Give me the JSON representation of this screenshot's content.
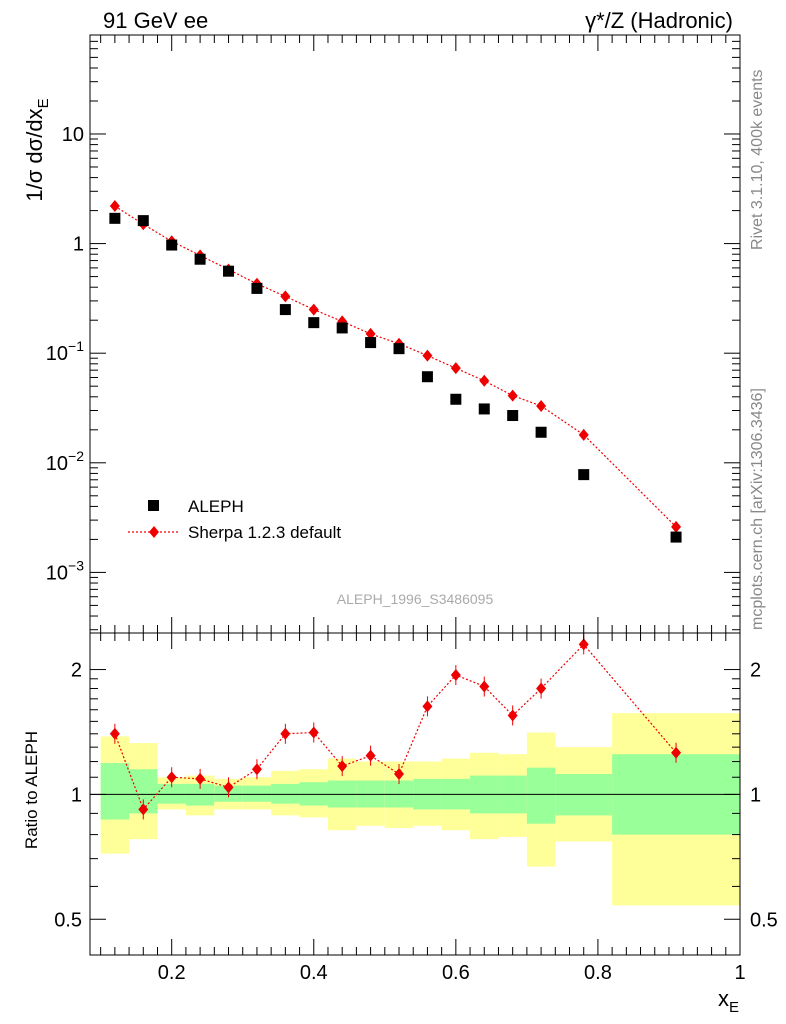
{
  "header": {
    "left": "91 GeV ee",
    "right": "γ*/Z (Hadronic)"
  },
  "side_labels": {
    "top": "Rivet 3.1.10,  400k events",
    "bottom": "mcplots.cern.ch [arXiv:1306.3436]"
  },
  "watermark": "ALEPH_1996_S3486095",
  "axes": {
    "ylabel_main": "1/σ dσ/dx",
    "ylabel_main_sub": "E",
    "ylabel_ratio": "Ratio to ALEPH",
    "xlabel": "x",
    "xlabel_sub": "E"
  },
  "legend": {
    "data_label": "ALEPH",
    "mc_label": "Sherpa 1.2.3 default"
  },
  "colors": {
    "data": "#000000",
    "mc": "#ee0000",
    "band_inner": "#99ff99",
    "band_outer": "#ffff99"
  },
  "chart_data": [
    {
      "type": "scatter",
      "yscale": "log",
      "xlim": [
        0.085,
        1.0
      ],
      "ylim": [
        0.00028,
        80
      ],
      "x_ticks": [
        "0.2",
        "0.4",
        "0.6",
        "0.8",
        "1"
      ],
      "y_ticks": [
        {
          "base": "10",
          "exp": "−3"
        },
        {
          "base": "10",
          "exp": "−2"
        },
        {
          "base": "10",
          "exp": "−1"
        },
        {
          "base": "1",
          "exp": ""
        },
        {
          "base": "10",
          "exp": ""
        }
      ],
      "series": [
        {
          "name": "ALEPH",
          "x": [
            0.12,
            0.16,
            0.2,
            0.24,
            0.28,
            0.32,
            0.36,
            0.4,
            0.44,
            0.48,
            0.52,
            0.56,
            0.6,
            0.64,
            0.68,
            0.72,
            0.78,
            0.91
          ],
          "y": [
            1.7,
            1.62,
            0.97,
            0.72,
            0.56,
            0.39,
            0.25,
            0.19,
            0.17,
            0.125,
            0.11,
            0.061,
            0.038,
            0.031,
            0.027,
            0.019,
            0.0078,
            0.0021
          ]
        },
        {
          "name": "Sherpa 1.2.3 default",
          "x": [
            0.12,
            0.16,
            0.2,
            0.24,
            0.28,
            0.32,
            0.36,
            0.4,
            0.44,
            0.48,
            0.52,
            0.56,
            0.6,
            0.64,
            0.68,
            0.72,
            0.78,
            0.91
          ],
          "y": [
            2.2,
            1.5,
            1.05,
            0.78,
            0.58,
            0.43,
            0.33,
            0.25,
            0.195,
            0.15,
            0.122,
            0.095,
            0.073,
            0.056,
            0.041,
            0.033,
            0.018,
            0.0026
          ]
        }
      ]
    },
    {
      "type": "line",
      "yscale": "log",
      "xlim": [
        0.085,
        1.0
      ],
      "ylim": [
        0.41,
        2.45
      ],
      "x_ticks": [
        "0.2",
        "0.4",
        "0.6",
        "0.8",
        "1"
      ],
      "y_ticks": [
        "0.5",
        "1",
        "2"
      ],
      "reference_line": 1,
      "bands": [
        {
          "xlo": 0.1,
          "xhi": 0.14,
          "inner": [
            0.87,
            1.19
          ],
          "outer": [
            0.72,
            1.38
          ]
        },
        {
          "xlo": 0.14,
          "xhi": 0.18,
          "inner": [
            0.9,
            1.15
          ],
          "outer": [
            0.78,
            1.33
          ]
        },
        {
          "xlo": 0.18,
          "xhi": 0.22,
          "inner": [
            0.95,
            1.06
          ],
          "outer": [
            0.92,
            1.1
          ]
        },
        {
          "xlo": 0.22,
          "xhi": 0.26,
          "inner": [
            0.94,
            1.06
          ],
          "outer": [
            0.89,
            1.11
          ]
        },
        {
          "xlo": 0.26,
          "xhi": 0.3,
          "inner": [
            0.96,
            1.05
          ],
          "outer": [
            0.92,
            1.09
          ]
        },
        {
          "xlo": 0.3,
          "xhi": 0.34,
          "inner": [
            0.96,
            1.05
          ],
          "outer": [
            0.92,
            1.1
          ]
        },
        {
          "xlo": 0.34,
          "xhi": 0.38,
          "inner": [
            0.95,
            1.06
          ],
          "outer": [
            0.89,
            1.14
          ]
        },
        {
          "xlo": 0.38,
          "xhi": 0.42,
          "inner": [
            0.94,
            1.07
          ],
          "outer": [
            0.88,
            1.15
          ]
        },
        {
          "xlo": 0.42,
          "xhi": 0.46,
          "inner": [
            0.93,
            1.08
          ],
          "outer": [
            0.82,
            1.22
          ]
        },
        {
          "xlo": 0.46,
          "xhi": 0.5,
          "inner": [
            0.93,
            1.08
          ],
          "outer": [
            0.84,
            1.2
          ]
        },
        {
          "xlo": 0.5,
          "xhi": 0.54,
          "inner": [
            0.93,
            1.08
          ],
          "outer": [
            0.83,
            1.2
          ]
        },
        {
          "xlo": 0.54,
          "xhi": 0.58,
          "inner": [
            0.92,
            1.09
          ],
          "outer": [
            0.84,
            1.2
          ]
        },
        {
          "xlo": 0.58,
          "xhi": 0.62,
          "inner": [
            0.92,
            1.09
          ],
          "outer": [
            0.82,
            1.22
          ]
        },
        {
          "xlo": 0.62,
          "xhi": 0.66,
          "inner": [
            0.9,
            1.11
          ],
          "outer": [
            0.78,
            1.26
          ]
        },
        {
          "xlo": 0.66,
          "xhi": 0.7,
          "inner": [
            0.9,
            1.11
          ],
          "outer": [
            0.79,
            1.25
          ]
        },
        {
          "xlo": 0.7,
          "xhi": 0.74,
          "inner": [
            0.85,
            1.16
          ],
          "outer": [
            0.67,
            1.41
          ]
        },
        {
          "xlo": 0.74,
          "xhi": 0.82,
          "inner": [
            0.89,
            1.12
          ],
          "outer": [
            0.77,
            1.3
          ]
        },
        {
          "xlo": 0.82,
          "xhi": 1.0,
          "inner": [
            0.8,
            1.25
          ],
          "outer": [
            0.54,
            1.57
          ]
        }
      ],
      "series": [
        {
          "name": "Sherpa 1.2.3 default",
          "x": [
            0.12,
            0.16,
            0.2,
            0.24,
            0.28,
            0.32,
            0.36,
            0.4,
            0.44,
            0.48,
            0.52,
            0.56,
            0.6,
            0.64,
            0.68,
            0.72,
            0.78,
            0.91
          ],
          "y": [
            1.4,
            0.92,
            1.1,
            1.09,
            1.04,
            1.15,
            1.4,
            1.41,
            1.17,
            1.24,
            1.12,
            1.63,
            1.94,
            1.82,
            1.55,
            1.8,
            2.3,
            1.26
          ]
        }
      ]
    }
  ]
}
